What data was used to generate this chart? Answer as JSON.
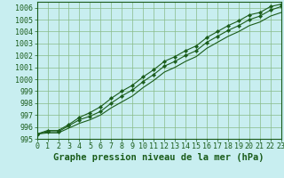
{
  "title": "Graphe pression niveau de la mer (hPa)",
  "background_color": "#c8eef0",
  "grid_color": "#88bb88",
  "line_color": "#1a5c1a",
  "marker_color": "#1a5c1a",
  "xlim": [
    0,
    23
  ],
  "ylim": [
    995.0,
    1006.5
  ],
  "yticks": [
    995,
    996,
    997,
    998,
    999,
    1000,
    1001,
    1002,
    1003,
    1004,
    1005,
    1006
  ],
  "xticks": [
    0,
    1,
    2,
    3,
    4,
    5,
    6,
    7,
    8,
    9,
    10,
    11,
    12,
    13,
    14,
    15,
    16,
    17,
    18,
    19,
    20,
    21,
    22,
    23
  ],
  "series": {
    "top": [
      995.4,
      995.7,
      995.7,
      996.2,
      996.8,
      997.2,
      997.7,
      998.4,
      999.0,
      999.5,
      1000.2,
      1000.8,
      1001.5,
      1001.9,
      1002.4,
      1002.8,
      1003.5,
      1004.0,
      1004.5,
      1004.9,
      1005.4,
      1005.6,
      1006.1,
      1006.3
    ],
    "mid": [
      995.4,
      995.6,
      995.6,
      996.1,
      996.6,
      996.9,
      997.3,
      998.0,
      998.6,
      999.1,
      999.8,
      1000.4,
      1001.1,
      1001.5,
      1002.0,
      1002.4,
      1003.1,
      1003.6,
      1004.1,
      1004.5,
      1005.0,
      1005.3,
      1005.8,
      1006.1
    ],
    "bot": [
      995.4,
      995.5,
      995.5,
      995.9,
      996.3,
      996.6,
      997.0,
      997.6,
      998.1,
      998.6,
      999.3,
      999.9,
      1000.6,
      1001.0,
      1001.5,
      1001.9,
      1002.6,
      1003.1,
      1003.6,
      1004.0,
      1004.5,
      1004.8,
      1005.3,
      1005.6
    ]
  },
  "title_fontsize": 7.5,
  "tick_fontsize": 6
}
